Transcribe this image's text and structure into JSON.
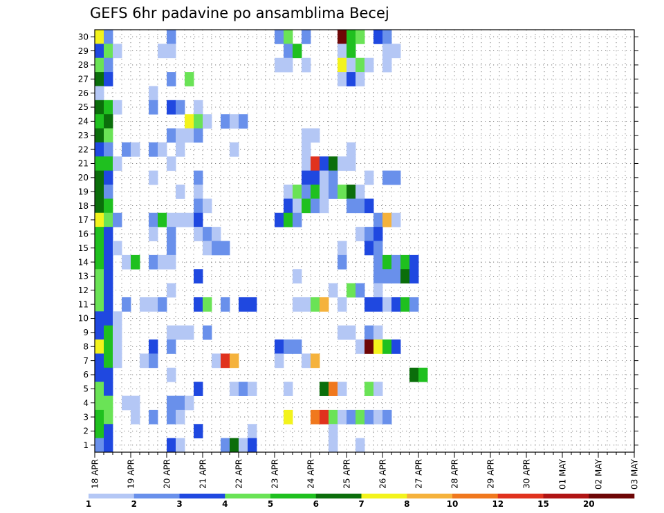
{
  "chart_data": {
    "type": "heatmap",
    "title": "GEFS 6hr padavine po ansamblima Becej",
    "xlabel": "",
    "ylabel": "",
    "x_tick_labels": [
      "18 APR",
      "19 APR",
      "20 APR",
      "21 APR",
      "22 APR",
      "23 APR",
      "24 APR",
      "25 APR",
      "26 APR",
      "27 APR",
      "28 APR",
      "29 APR",
      "30 APR",
      "01 MAY",
      "02 MAY",
      "03 MAY"
    ],
    "x_steps_per_day": 4,
    "x_steps": 61,
    "y_values": [
      1,
      2,
      3,
      4,
      5,
      6,
      7,
      8,
      9,
      10,
      11,
      12,
      13,
      14,
      15,
      16,
      17,
      18,
      19,
      20,
      21,
      22,
      23,
      24,
      25,
      26,
      27,
      28,
      29,
      30
    ],
    "ylim": [
      0.5,
      30.5
    ],
    "grid": true,
    "colorbar": {
      "placement": "bottom",
      "tick_labels": [
        "1",
        "2",
        "3",
        "4",
        "5",
        "6",
        "7",
        "8",
        "10",
        "12",
        "15",
        "20"
      ],
      "colors": [
        "#b4c7f5",
        "#6990eb",
        "#1f48e0",
        "#6ae356",
        "#1fc01f",
        "#0b6e0b",
        "#f3f31c",
        "#f5b23c",
        "#f0781e",
        "#e0321e",
        "#b01414",
        "#6e0606"
      ]
    },
    "cells_note": "each entry: [step_index_from_18_APR_00UTC, member, color_class] ; color_class 0 = 1-2 ... 11 = >20",
    "cells": [
      [
        0,
        30,
        6
      ],
      [
        1,
        30,
        1
      ],
      [
        8,
        30,
        1
      ],
      [
        20,
        30,
        1
      ],
      [
        21,
        30,
        3
      ],
      [
        23,
        30,
        1
      ],
      [
        27,
        30,
        11
      ],
      [
        28,
        30,
        4
      ],
      [
        29,
        30,
        3
      ],
      [
        31,
        30,
        2
      ],
      [
        32,
        30,
        1
      ],
      [
        0,
        29,
        2
      ],
      [
        1,
        29,
        3
      ],
      [
        2,
        29,
        0
      ],
      [
        7,
        29,
        0
      ],
      [
        8,
        29,
        0
      ],
      [
        21,
        29,
        1
      ],
      [
        22,
        29,
        4
      ],
      [
        27,
        29,
        0
      ],
      [
        28,
        29,
        4
      ],
      [
        32,
        29,
        0
      ],
      [
        33,
        29,
        0
      ],
      [
        0,
        28,
        3
      ],
      [
        1,
        28,
        1
      ],
      [
        20,
        28,
        0
      ],
      [
        21,
        28,
        0
      ],
      [
        23,
        28,
        0
      ],
      [
        27,
        28,
        6
      ],
      [
        28,
        28,
        0
      ],
      [
        29,
        28,
        3
      ],
      [
        30,
        28,
        0
      ],
      [
        32,
        28,
        0
      ],
      [
        0,
        27,
        5
      ],
      [
        1,
        27,
        2
      ],
      [
        8,
        27,
        1
      ],
      [
        10,
        27,
        3
      ],
      [
        27,
        27,
        0
      ],
      [
        28,
        27,
        2
      ],
      [
        29,
        27,
        0
      ],
      [
        0,
        26,
        0
      ],
      [
        6,
        26,
        0
      ],
      [
        0,
        25,
        5
      ],
      [
        1,
        25,
        4
      ],
      [
        2,
        25,
        0
      ],
      [
        6,
        25,
        1
      ],
      [
        8,
        25,
        2
      ],
      [
        9,
        25,
        1
      ],
      [
        11,
        25,
        0
      ],
      [
        0,
        24,
        4
      ],
      [
        1,
        24,
        5
      ],
      [
        10,
        24,
        6
      ],
      [
        11,
        24,
        3
      ],
      [
        12,
        24,
        0
      ],
      [
        14,
        24,
        1
      ],
      [
        15,
        24,
        0
      ],
      [
        16,
        24,
        1
      ],
      [
        0,
        23,
        5
      ],
      [
        1,
        23,
        3
      ],
      [
        8,
        23,
        1
      ],
      [
        9,
        23,
        0
      ],
      [
        10,
        23,
        0
      ],
      [
        11,
        23,
        1
      ],
      [
        23,
        23,
        0
      ],
      [
        24,
        23,
        0
      ],
      [
        0,
        22,
        2
      ],
      [
        1,
        22,
        1
      ],
      [
        3,
        22,
        1
      ],
      [
        4,
        22,
        0
      ],
      [
        6,
        22,
        1
      ],
      [
        7,
        22,
        0
      ],
      [
        9,
        22,
        0
      ],
      [
        15,
        22,
        0
      ],
      [
        23,
        22,
        0
      ],
      [
        28,
        22,
        0
      ],
      [
        0,
        21,
        4
      ],
      [
        1,
        21,
        4
      ],
      [
        2,
        21,
        0
      ],
      [
        8,
        21,
        0
      ],
      [
        23,
        21,
        0
      ],
      [
        24,
        21,
        9
      ],
      [
        25,
        21,
        2
      ],
      [
        26,
        21,
        5
      ],
      [
        27,
        21,
        0
      ],
      [
        28,
        21,
        0
      ],
      [
        0,
        20,
        5
      ],
      [
        1,
        20,
        2
      ],
      [
        6,
        20,
        0
      ],
      [
        11,
        20,
        1
      ],
      [
        23,
        20,
        2
      ],
      [
        24,
        20,
        2
      ],
      [
        25,
        20,
        0
      ],
      [
        26,
        20,
        1
      ],
      [
        30,
        20,
        0
      ],
      [
        32,
        20,
        1
      ],
      [
        33,
        20,
        1
      ],
      [
        0,
        19,
        5
      ],
      [
        1,
        19,
        1
      ],
      [
        9,
        19,
        0
      ],
      [
        11,
        19,
        0
      ],
      [
        21,
        19,
        0
      ],
      [
        22,
        19,
        3
      ],
      [
        23,
        19,
        1
      ],
      [
        24,
        19,
        4
      ],
      [
        25,
        19,
        0
      ],
      [
        26,
        19,
        1
      ],
      [
        27,
        19,
        3
      ],
      [
        28,
        19,
        5
      ],
      [
        29,
        19,
        0
      ],
      [
        0,
        18,
        5
      ],
      [
        1,
        18,
        4
      ],
      [
        11,
        18,
        1
      ],
      [
        12,
        18,
        0
      ],
      [
        21,
        18,
        2
      ],
      [
        22,
        18,
        0
      ],
      [
        23,
        18,
        4
      ],
      [
        24,
        18,
        1
      ],
      [
        25,
        18,
        0
      ],
      [
        28,
        18,
        1
      ],
      [
        29,
        18,
        1
      ],
      [
        30,
        18,
        2
      ],
      [
        0,
        17,
        6
      ],
      [
        1,
        17,
        3
      ],
      [
        2,
        17,
        1
      ],
      [
        6,
        17,
        1
      ],
      [
        7,
        17,
        4
      ],
      [
        8,
        17,
        0
      ],
      [
        9,
        17,
        0
      ],
      [
        10,
        17,
        0
      ],
      [
        11,
        17,
        2
      ],
      [
        20,
        17,
        2
      ],
      [
        21,
        17,
        4
      ],
      [
        22,
        17,
        1
      ],
      [
        31,
        17,
        1
      ],
      [
        32,
        17,
        7
      ],
      [
        33,
        17,
        0
      ],
      [
        0,
        16,
        4
      ],
      [
        1,
        16,
        2
      ],
      [
        6,
        16,
        0
      ],
      [
        8,
        16,
        1
      ],
      [
        11,
        16,
        0
      ],
      [
        12,
        16,
        1
      ],
      [
        13,
        16,
        0
      ],
      [
        29,
        16,
        0
      ],
      [
        30,
        16,
        1
      ],
      [
        31,
        16,
        2
      ],
      [
        0,
        15,
        4
      ],
      [
        1,
        15,
        2
      ],
      [
        2,
        15,
        0
      ],
      [
        8,
        15,
        1
      ],
      [
        12,
        15,
        0
      ],
      [
        13,
        15,
        1
      ],
      [
        14,
        15,
        1
      ],
      [
        27,
        15,
        0
      ],
      [
        30,
        15,
        2
      ],
      [
        31,
        15,
        1
      ],
      [
        0,
        14,
        4
      ],
      [
        1,
        14,
        2
      ],
      [
        3,
        14,
        0
      ],
      [
        4,
        14,
        4
      ],
      [
        6,
        14,
        1
      ],
      [
        7,
        14,
        0
      ],
      [
        8,
        14,
        0
      ],
      [
        27,
        14,
        1
      ],
      [
        31,
        14,
        1
      ],
      [
        32,
        14,
        4
      ],
      [
        33,
        14,
        1
      ],
      [
        34,
        14,
        4
      ],
      [
        35,
        14,
        2
      ],
      [
        0,
        13,
        3
      ],
      [
        1,
        13,
        2
      ],
      [
        11,
        13,
        2
      ],
      [
        22,
        13,
        0
      ],
      [
        31,
        13,
        1
      ],
      [
        32,
        13,
        1
      ],
      [
        33,
        13,
        1
      ],
      [
        34,
        13,
        5
      ],
      [
        35,
        13,
        2
      ],
      [
        0,
        12,
        3
      ],
      [
        1,
        12,
        2
      ],
      [
        8,
        12,
        0
      ],
      [
        26,
        12,
        0
      ],
      [
        28,
        12,
        3
      ],
      [
        29,
        12,
        1
      ],
      [
        31,
        12,
        0
      ],
      [
        0,
        11,
        3
      ],
      [
        1,
        11,
        2
      ],
      [
        3,
        11,
        1
      ],
      [
        5,
        11,
        0
      ],
      [
        6,
        11,
        0
      ],
      [
        7,
        11,
        1
      ],
      [
        11,
        11,
        2
      ],
      [
        12,
        11,
        3
      ],
      [
        14,
        11,
        1
      ],
      [
        16,
        11,
        2
      ],
      [
        17,
        11,
        2
      ],
      [
        22,
        11,
        0
      ],
      [
        23,
        11,
        0
      ],
      [
        24,
        11,
        3
      ],
      [
        25,
        11,
        7
      ],
      [
        27,
        11,
        0
      ],
      [
        30,
        11,
        2
      ],
      [
        31,
        11,
        2
      ],
      [
        32,
        11,
        0
      ],
      [
        33,
        11,
        2
      ],
      [
        34,
        11,
        4
      ],
      [
        35,
        11,
        1
      ],
      [
        0,
        10,
        2
      ],
      [
        1,
        10,
        2
      ],
      [
        2,
        10,
        0
      ],
      [
        0,
        9,
        2
      ],
      [
        1,
        9,
        4
      ],
      [
        2,
        9,
        0
      ],
      [
        8,
        9,
        0
      ],
      [
        9,
        9,
        0
      ],
      [
        10,
        9,
        0
      ],
      [
        12,
        9,
        1
      ],
      [
        27,
        9,
        0
      ],
      [
        28,
        9,
        0
      ],
      [
        30,
        9,
        1
      ],
      [
        31,
        9,
        0
      ],
      [
        0,
        8,
        6
      ],
      [
        1,
        8,
        4
      ],
      [
        2,
        8,
        0
      ],
      [
        6,
        8,
        2
      ],
      [
        8,
        8,
        1
      ],
      [
        20,
        8,
        2
      ],
      [
        21,
        8,
        1
      ],
      [
        22,
        8,
        1
      ],
      [
        29,
        8,
        0
      ],
      [
        30,
        8,
        11
      ],
      [
        31,
        8,
        6
      ],
      [
        32,
        8,
        4
      ],
      [
        33,
        8,
        2
      ],
      [
        0,
        7,
        2
      ],
      [
        1,
        7,
        4
      ],
      [
        2,
        7,
        0
      ],
      [
        5,
        7,
        0
      ],
      [
        6,
        7,
        1
      ],
      [
        13,
        7,
        0
      ],
      [
        14,
        7,
        9
      ],
      [
        15,
        7,
        7
      ],
      [
        20,
        7,
        0
      ],
      [
        23,
        7,
        0
      ],
      [
        24,
        7,
        7
      ],
      [
        0,
        6,
        2
      ],
      [
        1,
        6,
        2
      ],
      [
        8,
        6,
        0
      ],
      [
        35,
        6,
        5
      ],
      [
        36,
        6,
        4
      ],
      [
        0,
        5,
        3
      ],
      [
        1,
        5,
        2
      ],
      [
        11,
        5,
        2
      ],
      [
        15,
        5,
        0
      ],
      [
        16,
        5,
        1
      ],
      [
        17,
        5,
        0
      ],
      [
        21,
        5,
        0
      ],
      [
        25,
        5,
        5
      ],
      [
        26,
        5,
        8
      ],
      [
        27,
        5,
        0
      ],
      [
        30,
        5,
        3
      ],
      [
        31,
        5,
        0
      ],
      [
        0,
        4,
        3
      ],
      [
        1,
        4,
        3
      ],
      [
        3,
        4,
        0
      ],
      [
        4,
        4,
        0
      ],
      [
        8,
        4,
        1
      ],
      [
        9,
        4,
        1
      ],
      [
        10,
        4,
        0
      ],
      [
        0,
        3,
        4
      ],
      [
        1,
        3,
        3
      ],
      [
        4,
        3,
        0
      ],
      [
        6,
        3,
        1
      ],
      [
        8,
        3,
        1
      ],
      [
        9,
        3,
        0
      ],
      [
        21,
        3,
        6
      ],
      [
        24,
        3,
        8
      ],
      [
        25,
        3,
        9
      ],
      [
        26,
        3,
        3
      ],
      [
        27,
        3,
        0
      ],
      [
        28,
        3,
        1
      ],
      [
        29,
        3,
        3
      ],
      [
        30,
        3,
        1
      ],
      [
        31,
        3,
        0
      ],
      [
        32,
        3,
        1
      ],
      [
        0,
        2,
        4
      ],
      [
        1,
        2,
        2
      ],
      [
        11,
        2,
        2
      ],
      [
        17,
        2,
        0
      ],
      [
        26,
        2,
        0
      ],
      [
        0,
        1,
        1
      ],
      [
        1,
        1,
        2
      ],
      [
        8,
        1,
        2
      ],
      [
        9,
        1,
        0
      ],
      [
        14,
        1,
        1
      ],
      [
        15,
        1,
        5
      ],
      [
        16,
        1,
        0
      ],
      [
        17,
        1,
        2
      ],
      [
        26,
        1,
        0
      ],
      [
        29,
        1,
        0
      ]
    ]
  }
}
